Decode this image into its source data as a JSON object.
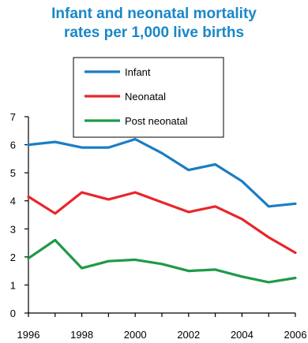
{
  "chart_data": {
    "type": "line",
    "title_lines": [
      "Infant and neonatal mortality",
      "rates per 1,000 live births"
    ],
    "x": [
      1996,
      1997,
      1998,
      1999,
      2000,
      2001,
      2002,
      2003,
      2004,
      2005,
      2006
    ],
    "x_tick_labels": [
      "1996",
      "1998",
      "2000",
      "2002",
      "2004",
      "2006"
    ],
    "x_ticks": [
      1996,
      1998,
      2000,
      2002,
      2004,
      2006
    ],
    "y_tick_labels": [
      "0",
      "1",
      "2",
      "3",
      "4",
      "5",
      "6",
      "7"
    ],
    "ylim": [
      0,
      7
    ],
    "xlim": [
      1996,
      2006
    ],
    "grid": false,
    "legend_position": "top-center",
    "series": [
      {
        "name": "Infant",
        "color": "#1a7dc4",
        "values": [
          6.0,
          6.1,
          5.9,
          5.9,
          6.2,
          5.7,
          5.1,
          5.3,
          4.7,
          3.8,
          3.9
        ]
      },
      {
        "name": "Neonatal",
        "color": "#e8262b",
        "values": [
          4.15,
          3.55,
          4.3,
          4.05,
          4.3,
          3.95,
          3.6,
          3.8,
          3.35,
          2.7,
          2.15
        ]
      },
      {
        "name": "Post neonatal",
        "color": "#1f9a48",
        "values": [
          1.95,
          2.6,
          1.6,
          1.85,
          1.9,
          1.75,
          1.5,
          1.55,
          1.3,
          1.1,
          1.25
        ]
      }
    ]
  }
}
